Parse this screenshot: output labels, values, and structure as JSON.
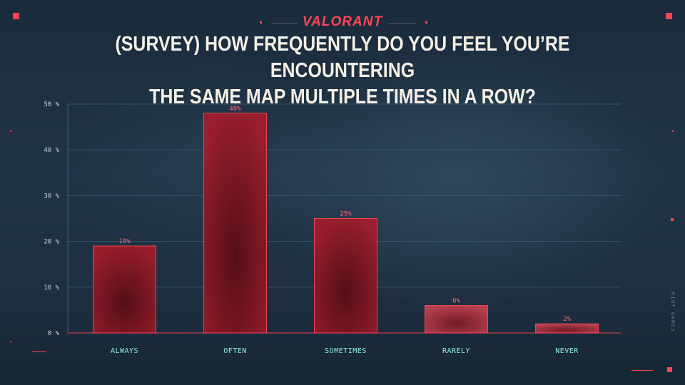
{
  "logo_text": "VALORANT",
  "title_line1": "(SURVEY) HOW FREQUENTLY DO YOU FEEL YOU’RE ENCOUNTERING",
  "title_line2": "THE SAME MAP MULTIPLE TIMES IN A ROW?",
  "brand_text": "RIOT GAMES",
  "colors": {
    "accent": "#ff4655",
    "bar_dark": "#8a1320",
    "bar_light": "#c03a49",
    "category_text": "#8ef0e6",
    "grid": "#3d6578"
  },
  "chart_data": {
    "type": "bar",
    "categories": [
      "ALWAYS",
      "OFTEN",
      "SOMETIMES",
      "RARELY",
      "NEVER"
    ],
    "values": [
      19,
      48,
      25,
      6,
      2
    ],
    "data_labels": [
      "19%",
      "48%",
      "25%",
      "6%",
      "2%"
    ],
    "y_ticks": [
      0,
      10,
      20,
      30,
      40,
      50
    ],
    "y_tick_labels": [
      "0 %",
      "10 %",
      "20 %",
      "30 %",
      "40 %",
      "50 %"
    ],
    "ylim": [
      0,
      50
    ],
    "grid": true,
    "title": "(SURVEY) HOW FREQUENTLY DO YOU FEEL YOU’RE ENCOUNTERING THE SAME MAP MULTIPLE TIMES IN A ROW?",
    "xlabel": "",
    "ylabel": ""
  }
}
